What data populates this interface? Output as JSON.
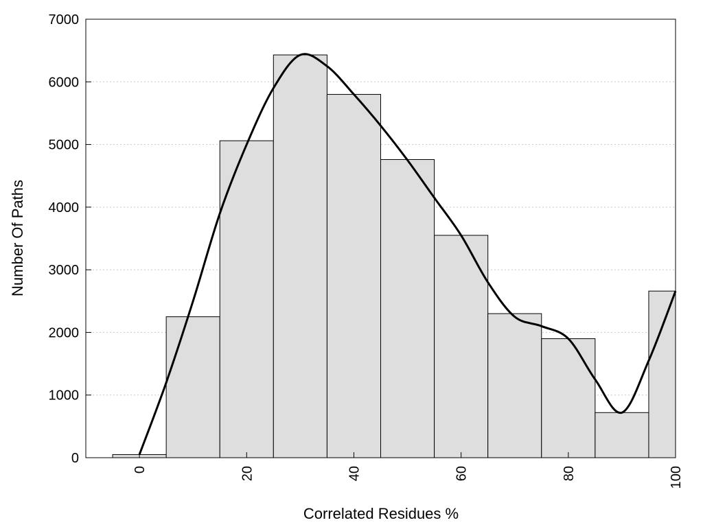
{
  "chart_data": {
    "type": "bar",
    "xlabel": "Correlated Residues %",
    "ylabel": "Number Of Paths",
    "xlim": [
      -10,
      100
    ],
    "ylim": [
      0,
      7000
    ],
    "x_ticks": [
      0,
      20,
      40,
      60,
      80,
      100
    ],
    "y_ticks": [
      0,
      1000,
      2000,
      3000,
      4000,
      5000,
      6000,
      7000
    ],
    "grid": "horizontal-dotted",
    "bar_color": "#dedede",
    "bins": [
      {
        "from": -5,
        "to": 5,
        "value": 50
      },
      {
        "from": 5,
        "to": 15,
        "value": 2250
      },
      {
        "from": 15,
        "to": 25,
        "value": 5060
      },
      {
        "from": 25,
        "to": 35,
        "value": 6430
      },
      {
        "from": 35,
        "to": 45,
        "value": 5800
      },
      {
        "from": 45,
        "to": 55,
        "value": 4760
      },
      {
        "from": 55,
        "to": 65,
        "value": 3550
      },
      {
        "from": 65,
        "to": 75,
        "value": 2300
      },
      {
        "from": 75,
        "to": 85,
        "value": 1900
      },
      {
        "from": 85,
        "to": 95,
        "value": 720
      },
      {
        "from": 95,
        "to": 100,
        "value": 2660
      }
    ],
    "curve": {
      "x": [
        0,
        5,
        10,
        15,
        20,
        25,
        30,
        35,
        40,
        45,
        50,
        55,
        60,
        65,
        70,
        75,
        80,
        85,
        90,
        95,
        100
      ],
      "y": [
        50,
        1200,
        2500,
        3900,
        5000,
        5900,
        6430,
        6250,
        5800,
        5300,
        4750,
        4150,
        3550,
        2800,
        2250,
        2100,
        1900,
        1250,
        720,
        1550,
        2660
      ]
    }
  }
}
